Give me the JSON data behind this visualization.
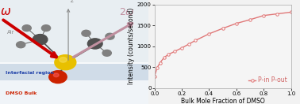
{
  "x_data": [
    0.0,
    0.02,
    0.04,
    0.07,
    0.1,
    0.15,
    0.2,
    0.25,
    0.3,
    0.4,
    0.5,
    0.6,
    0.7,
    0.8,
    0.9,
    1.0
  ],
  "y_data": [
    280,
    490,
    600,
    730,
    800,
    880,
    960,
    1050,
    1140,
    1300,
    1430,
    1550,
    1640,
    1740,
    1780,
    1820
  ],
  "line_color": "#e07878",
  "marker": "o",
  "marker_facecolor": "white",
  "marker_edgecolor": "#e07878",
  "legend_label": "P-in P-out",
  "legend_color": "#d06060",
  "xlabel": "Bulk Mole Fraction of DMSO",
  "ylabel": "Intensity (counts/second)",
  "xlim": [
    0.0,
    1.0
  ],
  "ylim": [
    0,
    2000
  ],
  "yticks": [
    0,
    500,
    1000,
    1500,
    2000
  ],
  "xticks": [
    0.0,
    0.2,
    0.4,
    0.6,
    0.8,
    1.0
  ],
  "bg_color": "#f2f2f2",
  "plot_bg_color": "#f5f5f5",
  "axis_label_fontsize": 5.5,
  "tick_fontsize": 5,
  "legend_fontsize": 5.5,
  "left_bg_top": "#e8eef2",
  "left_bg_interface": "#d0dce8",
  "left_bg_bulk": "#f0f4f8",
  "air_label_color": "#888888",
  "interface_label_color": "#2244aa",
  "bulk_label_color": "#cc2200",
  "omega_color": "#cc0000",
  "two_omega_color": "#c090a0",
  "z_arrow_color": "#888888",
  "s_atom_color": "#e8c000",
  "o_atom_color": "#cc2200",
  "c_atom_color": "#505050",
  "h_atom_color": "#808080"
}
